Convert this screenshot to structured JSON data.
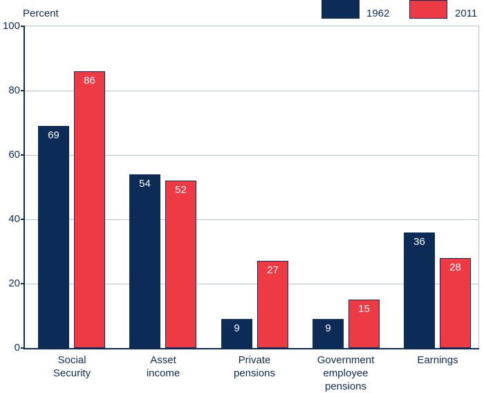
{
  "chart_data": {
    "type": "bar",
    "title": "",
    "axis": {
      "label": "Percent",
      "min": 0,
      "max": 100,
      "ticks": [
        0,
        20,
        40,
        60,
        80,
        100
      ],
      "grid": true
    },
    "categories": [
      "Social Security",
      "Asset income",
      "Private pensions",
      "Government employee pensions",
      "Earnings"
    ],
    "category_lines": [
      [
        "Social",
        "Security"
      ],
      [
        "Asset",
        "income"
      ],
      [
        "Private",
        "pensions"
      ],
      [
        "Government",
        "employee",
        "pensions"
      ],
      [
        "Earnings"
      ]
    ],
    "series": [
      {
        "name": "1962",
        "color": "#0d2b57",
        "values": [
          69,
          54,
          9,
          9,
          36
        ]
      },
      {
        "name": "2011",
        "color": "#ee3a44",
        "values": [
          86,
          52,
          27,
          15,
          28
        ]
      }
    ],
    "value_labels": true,
    "legend_position": "top-right"
  },
  "colors": {
    "navy": "#0d2b57",
    "red": "#ee3a44",
    "bar_border": "#0d2b57",
    "gridline": "#b6c0d2",
    "frame_border": "#b9c2cc",
    "text": "#0d2b57",
    "value_label_text": "#ffffff"
  }
}
